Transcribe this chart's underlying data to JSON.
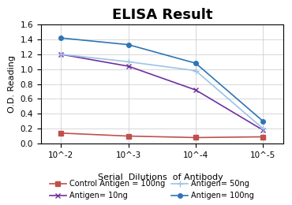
{
  "title": "ELISA Result",
  "xlabel": "Serial  Dilutions  of Antibody",
  "ylabel": "O.D. Reading",
  "x_tick_labels": [
    "10^-2",
    "10^-3",
    "10^-4",
    "10^-5"
  ],
  "series": [
    {
      "label": "Control Antigen = 100ng",
      "color": "#c0504d",
      "marker": "s",
      "markersize": 4,
      "values": [
        0.14,
        0.1,
        0.08,
        0.09
      ]
    },
    {
      "label": "Antigen= 10ng",
      "color": "#7030a0",
      "marker": "x",
      "markersize": 5,
      "values": [
        1.2,
        1.04,
        0.72,
        0.18
      ]
    },
    {
      "label": "Antigen= 50ng",
      "color": "#9dc3e6",
      "marker": "+",
      "markersize": 6,
      "values": [
        1.2,
        1.1,
        0.98,
        0.2
      ]
    },
    {
      "label": "Antigen= 100ng",
      "color": "#2e75b6",
      "marker": "o",
      "markersize": 4,
      "values": [
        1.42,
        1.33,
        1.08,
        0.3
      ]
    }
  ],
  "ylim": [
    0,
    1.6
  ],
  "yticks": [
    0.0,
    0.2,
    0.4,
    0.6,
    0.8,
    1.0,
    1.2,
    1.4,
    1.6
  ],
  "bg_color": "#ffffff",
  "grid_color": "#c8c8c8",
  "title_fontsize": 13,
  "label_fontsize": 8,
  "tick_fontsize": 7.5,
  "legend_fontsize": 7
}
